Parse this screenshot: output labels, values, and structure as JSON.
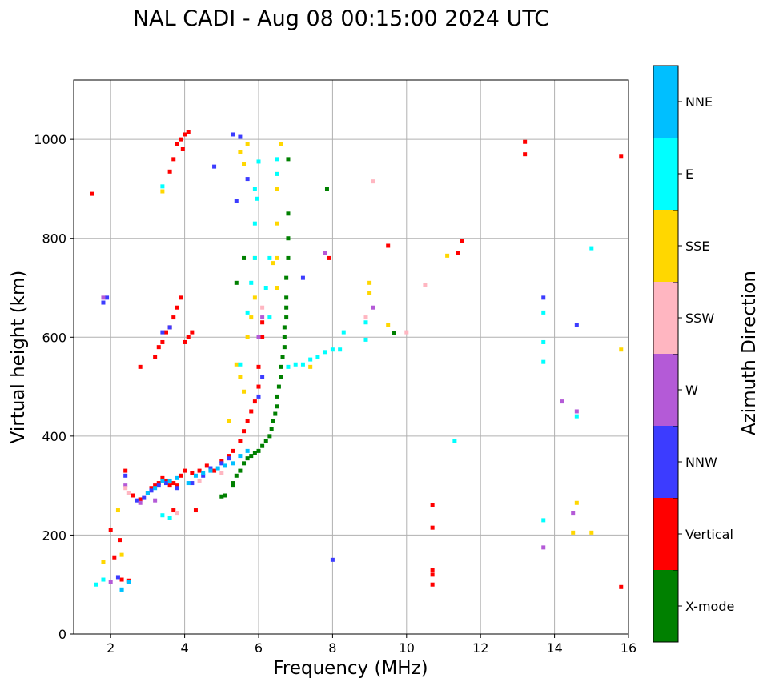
{
  "chart_data": {
    "type": "scatter",
    "title": "NAL CADI - Aug 08 00:15:00 2024 UTC",
    "xlabel": "Frequency (MHz)",
    "ylabel": "Virtual height (km)",
    "xlim": [
      1,
      16
    ],
    "ylim": [
      0,
      1120
    ],
    "xticks": [
      2,
      4,
      6,
      8,
      10,
      12,
      14,
      16
    ],
    "yticks": [
      0,
      200,
      400,
      600,
      800,
      1000
    ],
    "grid": true,
    "colorbar": {
      "label": "Azimuth Direction",
      "categories": [
        {
          "name": "X-mode",
          "color": "#008000"
        },
        {
          "name": "Vertical",
          "color": "#ff0000"
        },
        {
          "name": "NNW",
          "color": "#3c3cff"
        },
        {
          "name": "W",
          "color": "#b45ad7"
        },
        {
          "name": "SSW",
          "color": "#ffb6c1"
        },
        {
          "name": "SSE",
          "color": "#ffd700"
        },
        {
          "name": "E",
          "color": "#00ffff"
        },
        {
          "name": "NNE",
          "color": "#00bfff"
        }
      ]
    },
    "series": [
      {
        "name": "X-mode",
        "points": [
          [
            5.1,
            280
          ],
          [
            5.3,
            300
          ],
          [
            5.4,
            320
          ],
          [
            5.5,
            330
          ],
          [
            5.6,
            345
          ],
          [
            5.7,
            355
          ],
          [
            5.8,
            360
          ],
          [
            5.9,
            365
          ],
          [
            6.0,
            370
          ],
          [
            6.1,
            380
          ],
          [
            6.2,
            390
          ],
          [
            6.3,
            400
          ],
          [
            6.35,
            415
          ],
          [
            6.4,
            430
          ],
          [
            6.45,
            445
          ],
          [
            6.5,
            460
          ],
          [
            6.5,
            480
          ],
          [
            6.55,
            500
          ],
          [
            6.6,
            520
          ],
          [
            6.6,
            540
          ],
          [
            6.65,
            560
          ],
          [
            6.7,
            580
          ],
          [
            6.7,
            600
          ],
          [
            6.7,
            620
          ],
          [
            6.75,
            640
          ],
          [
            6.75,
            660
          ],
          [
            6.75,
            680
          ],
          [
            6.75,
            720
          ],
          [
            6.8,
            760
          ],
          [
            6.8,
            800
          ],
          [
            6.8,
            850
          ],
          [
            6.8,
            960
          ],
          [
            5.4,
            710
          ],
          [
            5.6,
            760
          ],
          [
            5.0,
            278
          ],
          [
            5.3,
            305
          ],
          [
            7.85,
            900
          ],
          [
            9.65,
            608
          ]
        ]
      },
      {
        "name": "Vertical",
        "points": [
          [
            1.5,
            890
          ],
          [
            2.0,
            210
          ],
          [
            2.1,
            155
          ],
          [
            2.25,
            190
          ],
          [
            2.3,
            110
          ],
          [
            2.4,
            330
          ],
          [
            2.5,
            108
          ],
          [
            2.6,
            280
          ],
          [
            2.8,
            272
          ],
          [
            3.0,
            285
          ],
          [
            3.1,
            295
          ],
          [
            3.2,
            300
          ],
          [
            3.3,
            305
          ],
          [
            3.4,
            315
          ],
          [
            3.5,
            310
          ],
          [
            3.6,
            300
          ],
          [
            3.7,
            305
          ],
          [
            3.8,
            300
          ],
          [
            3.9,
            320
          ],
          [
            4.0,
            330
          ],
          [
            4.2,
            325
          ],
          [
            4.4,
            330
          ],
          [
            4.6,
            340
          ],
          [
            4.8,
            330
          ],
          [
            5.0,
            350
          ],
          [
            5.2,
            360
          ],
          [
            5.3,
            370
          ],
          [
            5.5,
            390
          ],
          [
            5.6,
            410
          ],
          [
            5.7,
            430
          ],
          [
            5.8,
            450
          ],
          [
            5.9,
            470
          ],
          [
            6.0,
            500
          ],
          [
            6.0,
            540
          ],
          [
            6.1,
            600
          ],
          [
            6.1,
            630
          ],
          [
            3.3,
            580
          ],
          [
            3.4,
            590
          ],
          [
            3.5,
            610
          ],
          [
            3.6,
            620
          ],
          [
            3.7,
            640
          ],
          [
            3.8,
            660
          ],
          [
            3.9,
            680
          ],
          [
            4.0,
            590
          ],
          [
            4.1,
            600
          ],
          [
            4.2,
            610
          ],
          [
            2.8,
            540
          ],
          [
            3.2,
            560
          ],
          [
            3.7,
            960
          ],
          [
            3.6,
            935
          ],
          [
            3.8,
            990
          ],
          [
            3.9,
            1000
          ],
          [
            4.0,
            1010
          ],
          [
            4.1,
            1015
          ],
          [
            3.95,
            980
          ],
          [
            10.7,
            100
          ],
          [
            10.7,
            120
          ],
          [
            10.7,
            130
          ],
          [
            10.7,
            215
          ],
          [
            10.7,
            260
          ],
          [
            11.4,
            770
          ],
          [
            11.5,
            795
          ],
          [
            13.2,
            970
          ],
          [
            13.2,
            995
          ],
          [
            15.8,
            965
          ],
          [
            15.8,
            95
          ],
          [
            9.5,
            785
          ],
          [
            7.9,
            760
          ],
          [
            4.3,
            250
          ],
          [
            3.7,
            250
          ]
        ]
      },
      {
        "name": "NNW",
        "points": [
          [
            1.8,
            670
          ],
          [
            1.9,
            680
          ],
          [
            2.2,
            115
          ],
          [
            2.4,
            320
          ],
          [
            2.7,
            270
          ],
          [
            2.9,
            275
          ],
          [
            3.1,
            290
          ],
          [
            3.3,
            300
          ],
          [
            3.5,
            305
          ],
          [
            3.8,
            295
          ],
          [
            4.2,
            305
          ],
          [
            4.5,
            320
          ],
          [
            4.7,
            335
          ],
          [
            5.0,
            345
          ],
          [
            5.2,
            355
          ],
          [
            5.3,
            1010
          ],
          [
            5.5,
            1005
          ],
          [
            5.4,
            875
          ],
          [
            5.7,
            920
          ],
          [
            4.8,
            945
          ],
          [
            6.0,
            480
          ],
          [
            6.1,
            520
          ],
          [
            7.2,
            720
          ],
          [
            8.0,
            150
          ],
          [
            13.7,
            680
          ],
          [
            14.6,
            625
          ],
          [
            3.4,
            610
          ],
          [
            3.6,
            620
          ]
        ]
      },
      {
        "name": "W",
        "points": [
          [
            1.8,
            680
          ],
          [
            2.0,
            105
          ],
          [
            2.4,
            300
          ],
          [
            2.8,
            265
          ],
          [
            3.2,
            270
          ],
          [
            6.0,
            600
          ],
          [
            6.1,
            640
          ],
          [
            7.8,
            770
          ],
          [
            9.1,
            660
          ],
          [
            14.2,
            470
          ],
          [
            14.5,
            245
          ],
          [
            13.7,
            175
          ],
          [
            14.6,
            450
          ]
        ]
      },
      {
        "name": "SSW",
        "points": [
          [
            2.4,
            295
          ],
          [
            2.5,
            285
          ],
          [
            3.8,
            245
          ],
          [
            4.4,
            310
          ],
          [
            5.0,
            325
          ],
          [
            6.1,
            660
          ],
          [
            9.1,
            915
          ],
          [
            10.0,
            610
          ],
          [
            10.5,
            705
          ],
          [
            8.9,
            640
          ]
        ]
      },
      {
        "name": "SSE",
        "points": [
          [
            1.8,
            145
          ],
          [
            2.2,
            250
          ],
          [
            2.3,
            160
          ],
          [
            3.4,
            895
          ],
          [
            5.2,
            430
          ],
          [
            5.4,
            545
          ],
          [
            5.5,
            520
          ],
          [
            5.6,
            490
          ],
          [
            5.7,
            600
          ],
          [
            5.8,
            640
          ],
          [
            5.9,
            680
          ],
          [
            5.9,
            760
          ],
          [
            6.4,
            750
          ],
          [
            6.5,
            760
          ],
          [
            6.5,
            700
          ],
          [
            6.5,
            830
          ],
          [
            6.5,
            900
          ],
          [
            6.5,
            930
          ],
          [
            5.6,
            950
          ],
          [
            5.7,
            990
          ],
          [
            6.6,
            990
          ],
          [
            5.5,
            975
          ],
          [
            9.0,
            710
          ],
          [
            9.0,
            690
          ],
          [
            9.5,
            625
          ],
          [
            11.1,
            765
          ],
          [
            14.5,
            205
          ],
          [
            14.6,
            265
          ],
          [
            15.0,
            205
          ],
          [
            15.8,
            575
          ],
          [
            7.4,
            540
          ]
        ]
      },
      {
        "name": "E",
        "points": [
          [
            1.6,
            100
          ],
          [
            1.8,
            110
          ],
          [
            2.3,
            90
          ],
          [
            3.4,
            905
          ],
          [
            3.4,
            240
          ],
          [
            3.6,
            235
          ],
          [
            5.5,
            545
          ],
          [
            5.7,
            650
          ],
          [
            5.8,
            710
          ],
          [
            5.9,
            760
          ],
          [
            5.9,
            830
          ],
          [
            5.9,
            900
          ],
          [
            5.95,
            880
          ],
          [
            6.0,
            955
          ],
          [
            6.2,
            700
          ],
          [
            6.3,
            760
          ],
          [
            6.3,
            640
          ],
          [
            6.5,
            960
          ],
          [
            6.5,
            930
          ],
          [
            6.8,
            540
          ],
          [
            7.0,
            545
          ],
          [
            7.2,
            545
          ],
          [
            7.4,
            555
          ],
          [
            7.6,
            560
          ],
          [
            7.8,
            570
          ],
          [
            8.0,
            575
          ],
          [
            8.2,
            575
          ],
          [
            8.3,
            610
          ],
          [
            8.9,
            630
          ],
          [
            8.9,
            595
          ],
          [
            11.3,
            390
          ],
          [
            13.7,
            550
          ],
          [
            13.7,
            590
          ],
          [
            13.7,
            230
          ],
          [
            13.7,
            650
          ],
          [
            14.6,
            440
          ],
          [
            15.0,
            780
          ]
        ]
      },
      {
        "name": "NNE",
        "points": [
          [
            2.3,
            90
          ],
          [
            2.5,
            105
          ],
          [
            3.0,
            285
          ],
          [
            3.2,
            295
          ],
          [
            3.4,
            310
          ],
          [
            3.6,
            310
          ],
          [
            3.8,
            315
          ],
          [
            4.1,
            305
          ],
          [
            4.3,
            320
          ],
          [
            4.5,
            325
          ],
          [
            4.7,
            330
          ],
          [
            4.9,
            335
          ],
          [
            5.1,
            340
          ],
          [
            5.3,
            345
          ],
          [
            5.5,
            360
          ],
          [
            5.7,
            370
          ]
        ]
      }
    ]
  }
}
